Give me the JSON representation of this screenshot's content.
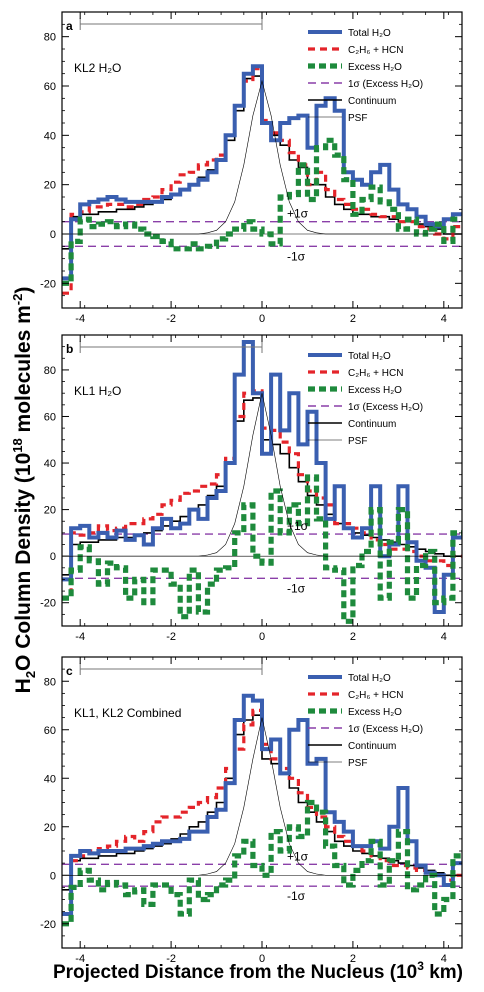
{
  "figure": {
    "ylabel_prefix": "H",
    "ylabel_sub": "2",
    "ylabel_mid": "O Column Density (10",
    "ylabel_sup": "18",
    "ylabel_suffix": " molecules m",
    "ylabel_sup2": "-2",
    "ylabel_end": ")",
    "xlabel_prefix": "Projected Distance from the Nucleus (10",
    "xlabel_sup": "3",
    "xlabel_suffix": " km)"
  },
  "styles": {
    "total_color": "#3a5fb0",
    "c2h6_color": "#e4242a",
    "excess_color": "#1e8a3c",
    "sigma_color": "#8a3fa8",
    "continuum_color": "#000000",
    "psf_color": "#000000"
  },
  "chart_data": [
    {
      "type": "line",
      "panel_letter": "a",
      "title": "KL2 H₂O",
      "xlim": [
        -4.4,
        4.4
      ],
      "ylim": [
        -30,
        90
      ],
      "xticks": [
        -4,
        -2,
        0,
        2,
        4
      ],
      "yticks": [
        -20,
        0,
        20,
        40,
        60,
        80
      ],
      "sigma": 5,
      "sigma_plus_label": "+1σ",
      "sigma_minus_label": "-1σ",
      "x_bin_edges": [
        -4.4,
        -4.2,
        -4.0,
        -3.8,
        -3.6,
        -3.4,
        -3.2,
        -3.0,
        -2.8,
        -2.6,
        -2.4,
        -2.2,
        -2.0,
        -1.8,
        -1.6,
        -1.4,
        -1.2,
        -1.0,
        -0.8,
        -0.6,
        -0.4,
        -0.2,
        0.0,
        0.2,
        0.4,
        0.6,
        0.8,
        1.0,
        1.2,
        1.4,
        1.6,
        1.8,
        2.0,
        2.2,
        2.4,
        2.6,
        2.8,
        3.0,
        3.2,
        3.4,
        3.6,
        3.8,
        4.0,
        4.2,
        4.4
      ],
      "legend": [
        {
          "key": "total",
          "label": "Total H₂O"
        },
        {
          "key": "c2h6",
          "label": "C₂H₆ + HCN"
        },
        {
          "key": "excess",
          "label": "Excess H₂O"
        },
        {
          "key": "sigma",
          "label": "1σ (Excess H₂O)"
        },
        {
          "key": "continuum",
          "label": "Continuum"
        },
        {
          "key": "psf",
          "label": "PSF"
        }
      ],
      "series": [
        {
          "key": "total",
          "values": [
            -18,
            6,
            12,
            13,
            14,
            15,
            14,
            13,
            13,
            13,
            13,
            15,
            16,
            18,
            20,
            22,
            25,
            30,
            40,
            52,
            65,
            68,
            45,
            38,
            45,
            47,
            48,
            35,
            52,
            55,
            50,
            25,
            22,
            20,
            25,
            28,
            18,
            12,
            10,
            7,
            4,
            3,
            6,
            8
          ]
        },
        {
          "key": "c2h6",
          "values": [
            -24,
            8,
            9,
            11,
            11,
            12,
            12,
            11,
            12,
            14,
            15,
            18,
            21,
            24,
            25,
            28,
            30,
            32,
            40,
            52,
            62,
            67,
            46,
            41,
            38,
            33,
            28,
            20,
            25,
            18,
            14,
            12,
            10,
            10,
            8,
            7,
            7,
            5,
            5,
            3,
            2,
            0,
            -2,
            3
          ]
        },
        {
          "key": "excess",
          "values": [
            -20,
            -3,
            6,
            3,
            4,
            5,
            3,
            4,
            2,
            0,
            -1,
            -3,
            -6,
            -6,
            -4,
            -6,
            -5,
            -2,
            0,
            2,
            5,
            2,
            0,
            -4,
            15,
            16,
            28,
            14,
            35,
            38,
            32,
            22,
            8,
            14,
            19,
            13,
            10,
            2,
            6,
            0,
            2,
            4,
            -3,
            6
          ]
        },
        {
          "key": "continuum",
          "values": [
            -6,
            7,
            8,
            8,
            9,
            9,
            10,
            10,
            11,
            12,
            13,
            14,
            16,
            18,
            20,
            23,
            26,
            30,
            38,
            50,
            63,
            64,
            45,
            40,
            36,
            30,
            27,
            20,
            20,
            15,
            12,
            10,
            8,
            8,
            7,
            7,
            6,
            5,
            5,
            4,
            3,
            2,
            0,
            0
          ]
        },
        {
          "key": "psf",
          "x": [
            -1.4,
            -1.2,
            -1.0,
            -0.8,
            -0.6,
            -0.4,
            -0.2,
            0.0,
            0.2,
            0.4,
            0.6,
            0.8,
            1.0,
            1.2,
            1.4
          ],
          "values": [
            0,
            0.5,
            1.5,
            5,
            13,
            28,
            48,
            62,
            48,
            28,
            13,
            5,
            1.5,
            0.5,
            0
          ]
        }
      ],
      "psf_bar": [
        -4.0,
        0.0
      ]
    },
    {
      "type": "line",
      "panel_letter": "b",
      "title": "KL1 H₂O",
      "xlim": [
        -4.4,
        4.4
      ],
      "ylim": [
        -30,
        95
      ],
      "xticks": [
        -4,
        -2,
        0,
        2,
        4
      ],
      "yticks": [
        -20,
        0,
        20,
        40,
        60,
        80
      ],
      "sigma": 9.5,
      "sigma_plus_label": "+1σ",
      "sigma_minus_label": "-1σ",
      "x_bin_edges": [
        -4.4,
        -4.2,
        -4.0,
        -3.8,
        -3.6,
        -3.4,
        -3.2,
        -3.0,
        -2.8,
        -2.6,
        -2.4,
        -2.2,
        -2.0,
        -1.8,
        -1.6,
        -1.4,
        -1.2,
        -1.0,
        -0.8,
        -0.6,
        -0.4,
        -0.2,
        0.0,
        0.2,
        0.4,
        0.6,
        0.8,
        1.0,
        1.2,
        1.4,
        1.6,
        1.8,
        2.0,
        2.2,
        2.4,
        2.6,
        2.8,
        3.0,
        3.2,
        3.4,
        3.6,
        3.8,
        4.0,
        4.2,
        4.4
      ],
      "legend": [
        {
          "key": "total",
          "label": "Total H₂O"
        },
        {
          "key": "c2h6",
          "label": "C₂H₆ + HCN"
        },
        {
          "key": "excess",
          "label": "Excess H₂O"
        },
        {
          "key": "sigma",
          "label": "1σ (Excess H₂O)"
        },
        {
          "key": "continuum",
          "label": "Continuum"
        },
        {
          "key": "psf",
          "label": "PSF"
        }
      ],
      "series": [
        {
          "key": "total",
          "values": [
            -10,
            12,
            13,
            8,
            10,
            8,
            11,
            7,
            9,
            5,
            12,
            16,
            12,
            14,
            20,
            16,
            25,
            28,
            40,
            78,
            92,
            70,
            44,
            78,
            54,
            70,
            48,
            62,
            40,
            16,
            30,
            12,
            8,
            12,
            30,
            0,
            5,
            30,
            6,
            -2,
            -5,
            -24,
            -8,
            8
          ]
        },
        {
          "key": "c2h6",
          "values": [
            -18,
            10,
            9,
            10,
            13,
            11,
            12,
            14,
            14,
            16,
            18,
            22,
            24,
            27,
            28,
            30,
            31,
            35,
            42,
            60,
            70,
            71,
            55,
            54,
            49,
            44,
            35,
            28,
            25,
            22,
            14,
            14,
            12,
            10,
            7,
            5,
            3,
            3,
            2,
            0,
            -2,
            -2,
            -4,
            0
          ]
        },
        {
          "key": "excess",
          "values": [
            -18,
            -6,
            4,
            -2,
            -12,
            -3,
            -5,
            -18,
            -10,
            -20,
            -6,
            -6,
            -12,
            -26,
            -6,
            -24,
            -12,
            -6,
            -5,
            10,
            22,
            0,
            -3,
            28,
            10,
            22,
            14,
            34,
            16,
            -5,
            -6,
            -28,
            -4,
            2,
            20,
            -18,
            6,
            20,
            -18,
            -4,
            2,
            -20,
            -18,
            10
          ]
        },
        {
          "key": "continuum",
          "values": [
            -8,
            5,
            6,
            6,
            7,
            7,
            8,
            8,
            9,
            10,
            11,
            13,
            15,
            17,
            20,
            22,
            26,
            30,
            40,
            58,
            67,
            68,
            50,
            48,
            44,
            38,
            32,
            26,
            22,
            18,
            14,
            12,
            10,
            9,
            8,
            7,
            6,
            5,
            4,
            3,
            2,
            1,
            0,
            0
          ]
        },
        {
          "key": "psf",
          "x": [
            -1.4,
            -1.2,
            -1.0,
            -0.8,
            -0.6,
            -0.4,
            -0.2,
            0.0,
            0.2,
            0.4,
            0.6,
            0.8,
            1.0,
            1.2,
            1.4
          ],
          "values": [
            0,
            0.5,
            1.5,
            5,
            14,
            30,
            52,
            70,
            52,
            30,
            14,
            5,
            1.5,
            0.5,
            0
          ]
        }
      ],
      "psf_bar": [
        -4.0,
        0.0
      ]
    },
    {
      "type": "line",
      "panel_letter": "c",
      "title": "KL1, KL2 Combined",
      "xlim": [
        -4.4,
        4.4
      ],
      "ylim": [
        -30,
        90
      ],
      "xticks": [
        -4,
        -2,
        0,
        2,
        4
      ],
      "yticks": [
        -20,
        0,
        20,
        40,
        60,
        80
      ],
      "sigma": 4.5,
      "sigma_plus_label": "+1σ",
      "sigma_minus_label": "-1σ",
      "x_bin_edges": [
        -4.4,
        -4.2,
        -4.0,
        -3.8,
        -3.6,
        -3.4,
        -3.2,
        -3.0,
        -2.8,
        -2.6,
        -2.4,
        -2.2,
        -2.0,
        -1.8,
        -1.6,
        -1.4,
        -1.2,
        -1.0,
        -0.8,
        -0.6,
        -0.4,
        -0.2,
        0.0,
        0.2,
        0.4,
        0.6,
        0.8,
        1.0,
        1.2,
        1.4,
        1.6,
        1.8,
        2.0,
        2.2,
        2.4,
        2.6,
        2.8,
        3.0,
        3.2,
        3.4,
        3.6,
        3.8,
        4.0,
        4.2,
        4.4
      ],
      "legend": [
        {
          "key": "total",
          "label": "Total H₂O"
        },
        {
          "key": "c2h6",
          "label": "C₂H₆ + HCN"
        },
        {
          "key": "excess",
          "label": "Excess H₂O"
        },
        {
          "key": "sigma",
          "label": "1σ (Excess H₂O)"
        },
        {
          "key": "continuum",
          "label": "Continuum"
        },
        {
          "key": "psf",
          "label": "PSF"
        }
      ],
      "series": [
        {
          "key": "total",
          "values": [
            -16,
            8,
            10,
            9,
            10,
            10,
            10,
            11,
            11,
            12,
            13,
            14,
            14,
            15,
            18,
            18,
            24,
            27,
            38,
            64,
            74,
            72,
            52,
            56,
            42,
            60,
            64,
            46,
            48,
            26,
            22,
            18,
            12,
            12,
            14,
            11,
            20,
            36,
            14,
            4,
            1,
            0,
            -4,
            5
          ]
        },
        {
          "key": "c2h6",
          "values": [
            -20,
            6,
            8,
            10,
            11,
            12,
            14,
            16,
            14,
            18,
            22,
            24,
            24,
            26,
            28,
            30,
            32,
            36,
            44,
            52,
            62,
            68,
            54,
            48,
            44,
            40,
            34,
            28,
            24,
            20,
            16,
            14,
            12,
            10,
            8,
            6,
            4,
            4,
            3,
            2,
            1,
            0,
            -2,
            0
          ]
        },
        {
          "key": "excess",
          "values": [
            -20,
            -5,
            2,
            -2,
            -6,
            -3,
            -4,
            -8,
            -6,
            -12,
            -4,
            -4,
            -8,
            -16,
            -2,
            -10,
            -8,
            -4,
            -2,
            8,
            14,
            4,
            0,
            18,
            10,
            20,
            16,
            30,
            26,
            12,
            4,
            -4,
            2,
            6,
            14,
            -4,
            6,
            18,
            -6,
            -4,
            0,
            -16,
            -10,
            8
          ]
        },
        {
          "key": "continuum",
          "values": [
            -6,
            6,
            7,
            7,
            8,
            8,
            9,
            9,
            10,
            11,
            12,
            13,
            15,
            17,
            20,
            22,
            26,
            30,
            40,
            58,
            64,
            66,
            48,
            46,
            42,
            36,
            30,
            26,
            22,
            18,
            14,
            12,
            10,
            9,
            8,
            7,
            6,
            5,
            4,
            3,
            2,
            1,
            0,
            0
          ]
        },
        {
          "key": "psf",
          "x": [
            -1.4,
            -1.2,
            -1.0,
            -0.8,
            -0.6,
            -0.4,
            -0.2,
            0.0,
            0.2,
            0.4,
            0.6,
            0.8,
            1.0,
            1.2,
            1.4
          ],
          "values": [
            0,
            0.5,
            1.5,
            5,
            13,
            28,
            48,
            65,
            48,
            28,
            13,
            5,
            1.5,
            0.5,
            0
          ]
        }
      ],
      "psf_bar": [
        -4.0,
        0.0
      ]
    }
  ]
}
